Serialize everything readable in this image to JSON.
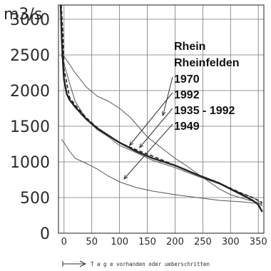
{
  "chart_data": {
    "type": "line",
    "y_unit": "m3/s",
    "xlim": [
      -10,
      360
    ],
    "ylim": [
      0,
      3200
    ],
    "x_ticks": [
      "0",
      "50",
      "100",
      "150",
      "200",
      "250",
      "300",
      "350"
    ],
    "y_ticks": [
      "0",
      "500",
      "1000",
      "1500",
      "2000",
      "2500",
      "3000"
    ],
    "x_tick_values": [
      0,
      50,
      100,
      150,
      200,
      250,
      300,
      350
    ],
    "y_tick_values": [
      0,
      500,
      1000,
      1500,
      2000,
      2500,
      3000
    ],
    "grid": true,
    "legend_lines": [
      "Rhein",
      "Rheinfelden",
      "1970",
      "1992",
      "1935 - 1992",
      "1949"
    ],
    "axis_caption": "T a g e   vorhanden oder ueberschritten",
    "series": [
      {
        "name": "1970",
        "style": "thin",
        "points": [
          [
            -5,
            2520
          ],
          [
            0,
            2480
          ],
          [
            20,
            2250
          ],
          [
            40,
            2050
          ],
          [
            60,
            1920
          ],
          [
            80,
            1850
          ],
          [
            100,
            1750
          ],
          [
            120,
            1620
          ],
          [
            150,
            1350
          ],
          [
            175,
            1200
          ],
          [
            200,
            1050
          ],
          [
            220,
            950
          ],
          [
            250,
            780
          ],
          [
            280,
            620
          ],
          [
            300,
            540
          ],
          [
            330,
            470
          ],
          [
            350,
            430
          ],
          [
            357,
            380
          ]
        ]
      },
      {
        "name": "1992",
        "style": "thin",
        "points": [
          [
            -5,
            2500
          ],
          [
            0,
            2380
          ],
          [
            10,
            2100
          ],
          [
            20,
            1850
          ],
          [
            40,
            1600
          ],
          [
            60,
            1450
          ],
          [
            80,
            1350
          ],
          [
            100,
            1230
          ],
          [
            130,
            1130
          ],
          [
            160,
            1020
          ],
          [
            200,
            920
          ],
          [
            240,
            800
          ],
          [
            280,
            690
          ],
          [
            300,
            620
          ],
          [
            320,
            560
          ],
          [
            340,
            500
          ],
          [
            355,
            430
          ],
          [
            357,
            400
          ]
        ]
      },
      {
        "name": "1935 - 1992",
        "style": "dashed",
        "points": [
          [
            -5,
            3200
          ],
          [
            -2,
            2800
          ],
          [
            0,
            2300
          ],
          [
            10,
            1900
          ],
          [
            20,
            1800
          ],
          [
            40,
            1620
          ],
          [
            60,
            1480
          ],
          [
            80,
            1370
          ],
          [
            100,
            1270
          ],
          [
            130,
            1170
          ],
          [
            160,
            1080
          ],
          [
            200,
            950
          ],
          [
            240,
            820
          ],
          [
            280,
            700
          ],
          [
            300,
            630
          ],
          [
            320,
            560
          ],
          [
            340,
            500
          ],
          [
            357,
            430
          ]
        ]
      },
      {
        "name": "main-curve",
        "style": "thick",
        "points": [
          [
            -6,
            3200
          ],
          [
            -4,
            2700
          ],
          [
            -2,
            2400
          ],
          [
            0,
            2150
          ],
          [
            5,
            1950
          ],
          [
            10,
            1870
          ],
          [
            20,
            1770
          ],
          [
            40,
            1600
          ],
          [
            60,
            1470
          ],
          [
            80,
            1370
          ],
          [
            100,
            1270
          ],
          [
            130,
            1150
          ],
          [
            160,
            1050
          ],
          [
            200,
            950
          ],
          [
            240,
            820
          ],
          [
            280,
            700
          ],
          [
            300,
            620
          ],
          [
            320,
            540
          ],
          [
            340,
            460
          ],
          [
            350,
            400
          ],
          [
            357,
            300
          ]
        ]
      },
      {
        "name": "1949",
        "style": "thin",
        "points": [
          [
            -5,
            1320
          ],
          [
            0,
            1270
          ],
          [
            10,
            1150
          ],
          [
            20,
            1050
          ],
          [
            40,
            980
          ],
          [
            60,
            900
          ],
          [
            80,
            800
          ],
          [
            100,
            720
          ],
          [
            130,
            640
          ],
          [
            160,
            590
          ],
          [
            200,
            540
          ],
          [
            240,
            500
          ],
          [
            280,
            460
          ],
          [
            320,
            440
          ],
          [
            357,
            410
          ]
        ]
      }
    ],
    "pointers": [
      {
        "label": "1970",
        "to": [
          178,
          1650
        ]
      },
      {
        "label": "1992",
        "to": [
          118,
          1230
        ]
      },
      {
        "label": "1935 - 1992",
        "to": [
          136,
          1200
        ]
      },
      {
        "label": "1949",
        "to": [
          108,
          760
        ]
      }
    ]
  }
}
